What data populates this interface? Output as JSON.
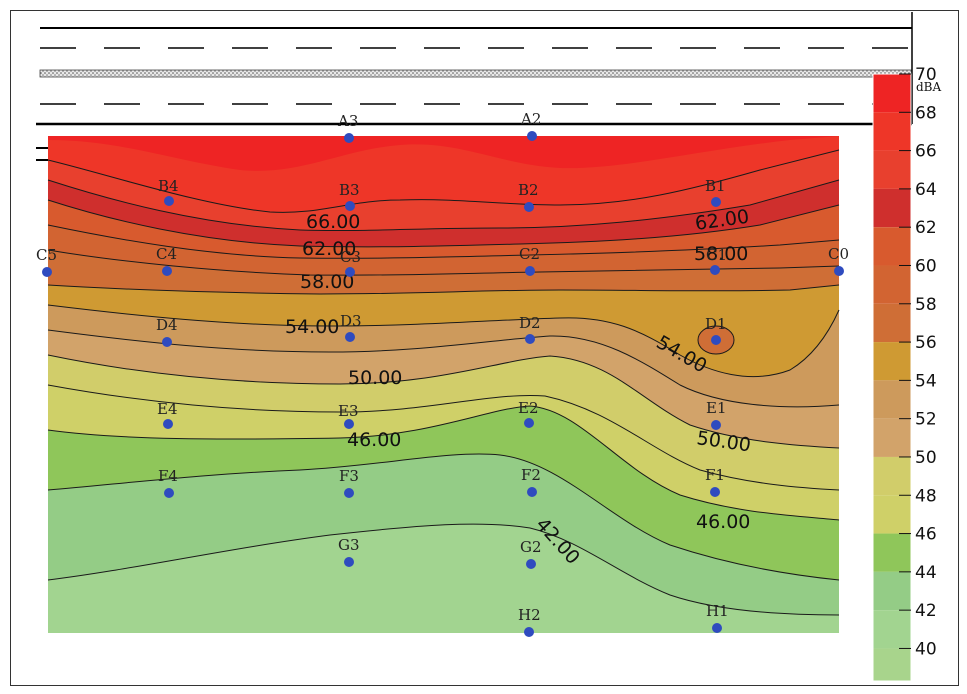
{
  "chart_data": {
    "type": "heatmap",
    "title": "",
    "unit_label": "dBA",
    "colorbar": {
      "ticks": [
        70,
        68,
        66,
        64,
        62,
        60,
        58,
        56,
        54,
        52,
        50,
        48,
        46,
        44,
        42,
        40
      ],
      "bands": [
        {
          "from": 68,
          "to": 70,
          "color": "#ee2424"
        },
        {
          "from": 66,
          "to": 68,
          "color": "#ee3628"
        },
        {
          "from": 64,
          "to": 66,
          "color": "#e8402e"
        },
        {
          "from": 62,
          "to": 64,
          "color": "#cf2f2d"
        },
        {
          "from": 60,
          "to": 62,
          "color": "#d85a2e"
        },
        {
          "from": 58,
          "to": 60,
          "color": "#d26432"
        },
        {
          "from": 56,
          "to": 58,
          "color": "#cf6e36"
        },
        {
          "from": 54,
          "to": 56,
          "color": "#cf9a33"
        },
        {
          "from": 52,
          "to": 54,
          "color": "#cd9a5c"
        },
        {
          "from": 50,
          "to": 52,
          "color": "#d2a36a"
        },
        {
          "from": 48,
          "to": 50,
          "color": "#d1cd6a"
        },
        {
          "from": 46,
          "to": 48,
          "color": "#cfd068"
        },
        {
          "from": 44,
          "to": 46,
          "color": "#8fc65a"
        },
        {
          "from": 42,
          "to": 44,
          "color": "#94cc86"
        },
        {
          "from": 40,
          "to": 42,
          "color": "#a2d490"
        },
        {
          "from": 38,
          "to": 40,
          "color": "#a8d48c"
        }
      ]
    },
    "contour_labels": [
      "66.00",
      "62.00",
      "58.00",
      "54.00",
      "50.00",
      "46.00",
      "42.00",
      "62.00",
      "58.00",
      "54.00",
      "50.00",
      "46.00"
    ],
    "measurement_points": [
      "A3",
      "A2",
      "B4",
      "B3",
      "B2",
      "B1",
      "C5",
      "C4",
      "C3",
      "C2",
      "C1",
      "C0",
      "D4",
      "D3",
      "D2",
      "D1",
      "E4",
      "E3",
      "E2",
      "E1",
      "F4",
      "F3",
      "F2",
      "F1",
      "G3",
      "G2",
      "H2",
      "H1"
    ]
  },
  "colors": {
    "point": "#2f4bbf",
    "contour_line": "#1a1a1a"
  }
}
